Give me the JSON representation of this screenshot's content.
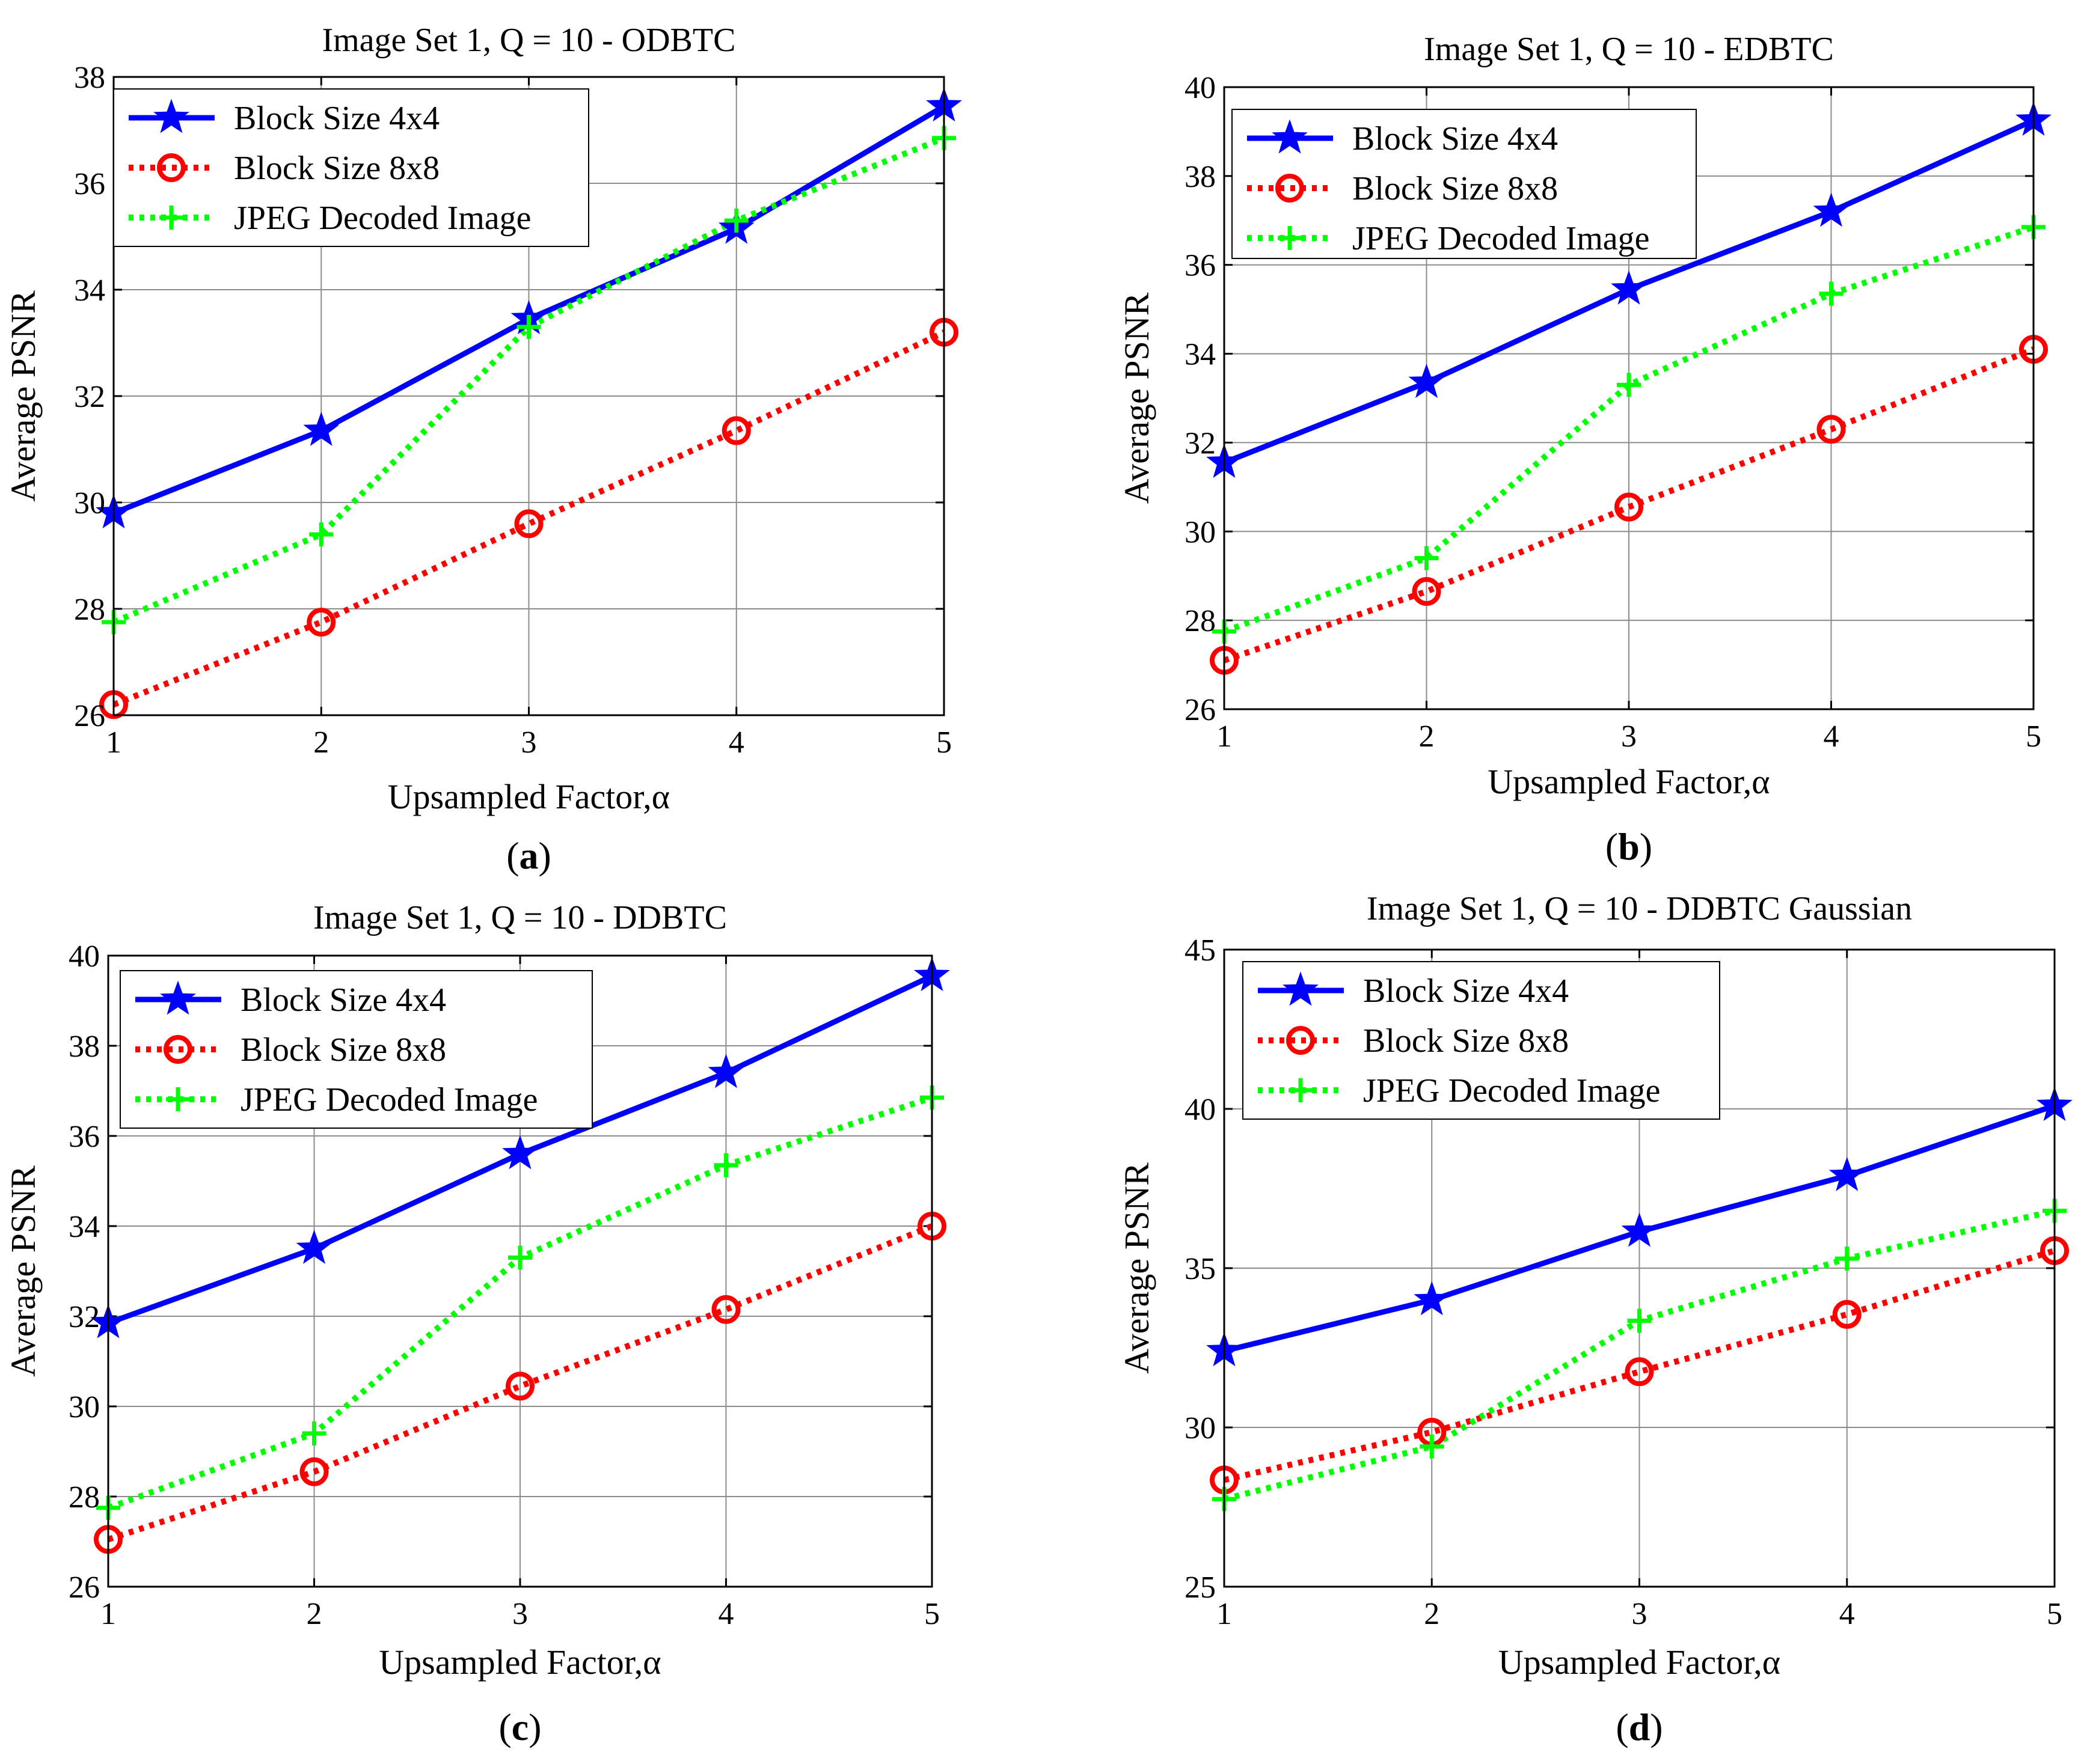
{
  "figure": {
    "panels": [
      {
        "caption_letter": "a"
      },
      {
        "caption_letter": "b"
      },
      {
        "caption_letter": "c"
      },
      {
        "caption_letter": "d"
      }
    ]
  },
  "chart_data": [
    {
      "type": "line",
      "title": "Image Set 1, Q = 10 - ODBTC",
      "xlabel": "Upsampled Factor,α",
      "ylabel": "Average PSNR",
      "x": [
        1,
        2,
        3,
        4,
        5
      ],
      "xlim": [
        1,
        5
      ],
      "ylim": [
        26,
        38
      ],
      "yticks": [
        26,
        28,
        30,
        32,
        34,
        36,
        38
      ],
      "grid": true,
      "legend_position": "top-left",
      "series": [
        {
          "name": "Block Size 4x4",
          "values": [
            29.8,
            31.35,
            33.45,
            35.15,
            37.45
          ],
          "color": "#0000ff",
          "line": "solid",
          "marker": "star"
        },
        {
          "name": "Block Size 8x8",
          "values": [
            26.2,
            27.75,
            29.6,
            31.35,
            33.2
          ],
          "color": "#ff0000",
          "line": "dotted",
          "marker": "circle"
        },
        {
          "name": "JPEG Decoded Image",
          "values": [
            27.75,
            29.4,
            33.3,
            35.3,
            36.85
          ],
          "color": "#00ff00",
          "line": "dotted",
          "marker": "plus"
        }
      ]
    },
    {
      "type": "line",
      "title": "Image Set 1, Q = 10 - EDBTC",
      "xlabel": "Upsampled Factor,α",
      "ylabel": "Average PSNR",
      "x": [
        1,
        2,
        3,
        4,
        5
      ],
      "xlim": [
        1,
        5
      ],
      "ylim": [
        26,
        40
      ],
      "yticks": [
        26,
        28,
        30,
        32,
        34,
        36,
        38,
        40
      ],
      "grid": true,
      "legend_position": "top-left",
      "series": [
        {
          "name": "Block Size 4x4",
          "values": [
            31.55,
            33.35,
            35.45,
            37.2,
            39.25
          ],
          "color": "#0000ff",
          "line": "solid",
          "marker": "star"
        },
        {
          "name": "Block Size 8x8",
          "values": [
            27.1,
            28.65,
            30.55,
            32.3,
            34.1
          ],
          "color": "#ff0000",
          "line": "dotted",
          "marker": "circle"
        },
        {
          "name": "JPEG Decoded Image",
          "values": [
            27.75,
            29.4,
            33.3,
            35.35,
            36.85
          ],
          "color": "#00ff00",
          "line": "dotted",
          "marker": "plus"
        }
      ]
    },
    {
      "type": "line",
      "title": "Image Set 1, Q = 10 - DDBTC",
      "xlabel": "Upsampled Factor,α",
      "ylabel": "Average PSNR",
      "x": [
        1,
        2,
        3,
        4,
        5
      ],
      "xlim": [
        1,
        5
      ],
      "ylim": [
        26,
        40
      ],
      "yticks": [
        26,
        28,
        30,
        32,
        34,
        36,
        38,
        40
      ],
      "grid": true,
      "legend_position": "top-left",
      "series": [
        {
          "name": "Block Size 4x4",
          "values": [
            31.85,
            33.5,
            35.6,
            37.4,
            39.55
          ],
          "color": "#0000ff",
          "line": "solid",
          "marker": "star"
        },
        {
          "name": "Block Size 8x8",
          "values": [
            27.05,
            28.55,
            30.45,
            32.15,
            34.0
          ],
          "color": "#ff0000",
          "line": "dotted",
          "marker": "circle"
        },
        {
          "name": "JPEG Decoded Image",
          "values": [
            27.75,
            29.4,
            33.3,
            35.35,
            36.85
          ],
          "color": "#00ff00",
          "line": "dotted",
          "marker": "plus"
        }
      ]
    },
    {
      "type": "line",
      "title": "Image Set 1, Q = 10 - DDBTC Gaussian",
      "xlabel": "Upsampled Factor,α",
      "ylabel": "Average PSNR",
      "x": [
        1,
        2,
        3,
        4,
        5
      ],
      "xlim": [
        1,
        5
      ],
      "ylim": [
        25,
        45
      ],
      "yticks": [
        25,
        30,
        35,
        40,
        45
      ],
      "grid": true,
      "legend_position": "top-left",
      "series": [
        {
          "name": "Block Size 4x4",
          "values": [
            32.4,
            34.0,
            36.15,
            37.9,
            40.1
          ],
          "color": "#0000ff",
          "line": "solid",
          "marker": "star"
        },
        {
          "name": "Block Size 8x8",
          "values": [
            28.35,
            29.85,
            31.75,
            33.55,
            35.55
          ],
          "color": "#ff0000",
          "line": "dotted",
          "marker": "circle"
        },
        {
          "name": "JPEG Decoded Image",
          "values": [
            27.75,
            29.4,
            33.35,
            35.3,
            36.8
          ],
          "color": "#00ff00",
          "line": "dotted",
          "marker": "plus"
        }
      ]
    }
  ]
}
